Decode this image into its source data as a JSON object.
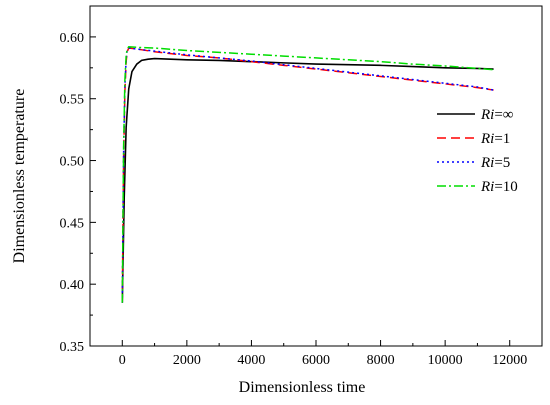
{
  "chart_data": {
    "type": "line",
    "title": "",
    "xlabel": "Dimensionless time",
    "ylabel": "Dimensionless temperature",
    "xlim": [
      -1000,
      13000
    ],
    "ylim": [
      0.35,
      0.625
    ],
    "xticks": [
      0,
      2000,
      4000,
      6000,
      8000,
      10000,
      12000
    ],
    "xtick_labels": [
      "0",
      "2000",
      "4000",
      "6000",
      "8000",
      "10000",
      "12000"
    ],
    "yticks": [
      0.35,
      0.4,
      0.45,
      0.5,
      0.55,
      0.6
    ],
    "ytick_labels": [
      "0.35",
      "0.40",
      "0.45",
      "0.50",
      "0.55",
      "0.60"
    ],
    "legend_position": "right",
    "grid": false,
    "series": [
      {
        "name": "Ri=∞",
        "legend_var": "Ri",
        "legend_value": "=∞",
        "color": "#000000",
        "dash": "solid",
        "x": [
          0,
          60,
          120,
          200,
          300,
          450,
          600,
          800,
          1000,
          1500,
          2000,
          3000,
          4000,
          5000,
          6000,
          7000,
          8000,
          9000,
          10000,
          11000,
          11500
        ],
        "y": [
          0.385,
          0.47,
          0.527,
          0.558,
          0.572,
          0.578,
          0.581,
          0.582,
          0.5825,
          0.582,
          0.5815,
          0.581,
          0.58,
          0.579,
          0.578,
          0.5775,
          0.577,
          0.576,
          0.575,
          0.5745,
          0.574
        ]
      },
      {
        "name": "Ri=1",
        "legend_var": "Ri",
        "legend_value": "=1",
        "color": "#ff0000",
        "dash": "dashed",
        "x": [
          0,
          40,
          80,
          120,
          150,
          200,
          500,
          1000,
          2000,
          3000,
          4000,
          5000,
          6000,
          7000,
          8000,
          9000,
          10000,
          11000,
          11500
        ],
        "y": [
          0.385,
          0.5,
          0.555,
          0.58,
          0.588,
          0.591,
          0.59,
          0.588,
          0.585,
          0.583,
          0.58,
          0.577,
          0.574,
          0.571,
          0.568,
          0.565,
          0.562,
          0.559,
          0.557
        ]
      },
      {
        "name": "Ri=5",
        "legend_var": "Ri",
        "legend_value": "=5",
        "color": "#0000ff",
        "dash": "dotted",
        "x": [
          0,
          40,
          80,
          120,
          150,
          200,
          500,
          1000,
          2000,
          3000,
          4000,
          5000,
          6000,
          7000,
          8000,
          9000,
          10000,
          11000,
          11500
        ],
        "y": [
          0.385,
          0.505,
          0.56,
          0.582,
          0.589,
          0.591,
          0.59,
          0.5885,
          0.5855,
          0.583,
          0.5805,
          0.5775,
          0.5745,
          0.5715,
          0.5685,
          0.5655,
          0.5625,
          0.5595,
          0.557
        ]
      },
      {
        "name": "Ri=10",
        "legend_var": "Ri",
        "legend_value": "=10",
        "color": "#00dd00",
        "dash": "dashdot",
        "x": [
          0,
          40,
          80,
          120,
          150,
          200,
          500,
          1000,
          2000,
          3000,
          4000,
          5000,
          6000,
          7000,
          8000,
          9000,
          10000,
          11000,
          11500
        ],
        "y": [
          0.385,
          0.51,
          0.565,
          0.585,
          0.59,
          0.592,
          0.5915,
          0.591,
          0.589,
          0.5875,
          0.586,
          0.5845,
          0.583,
          0.5815,
          0.58,
          0.578,
          0.5765,
          0.5745,
          0.5735
        ]
      }
    ]
  }
}
